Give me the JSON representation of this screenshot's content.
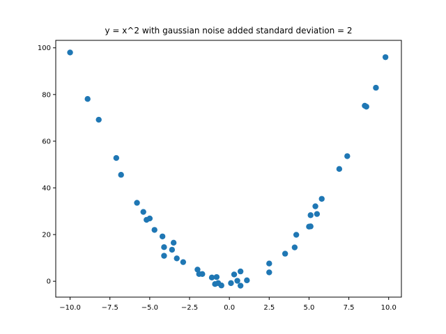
{
  "chart_data": {
    "type": "scatter",
    "title": "y = x^2 with gaussian noise added standard deviation = 2",
    "xlabel": "",
    "ylabel": "",
    "xlim": [
      -10.9,
      10.8
    ],
    "ylim": [
      -6.8,
      103.2
    ],
    "xticks": [
      -10.0,
      -7.5,
      -5.0,
      -2.5,
      0.0,
      2.5,
      5.0,
      7.5,
      10.0
    ],
    "xtick_labels": [
      "−10.0",
      "−7.5",
      "−5.0",
      "−2.5",
      "0.0",
      "2.5",
      "5.0",
      "7.5",
      "10.0"
    ],
    "yticks": [
      0,
      20,
      40,
      60,
      80,
      100
    ],
    "ytick_labels": [
      "0",
      "20",
      "40",
      "60",
      "80",
      "100"
    ],
    "grid": false,
    "marker_color": "#1f77b4",
    "points": [
      {
        "x": -10.0,
        "y": 98.0
      },
      {
        "x": -8.9,
        "y": 78.1
      },
      {
        "x": -8.2,
        "y": 69.2
      },
      {
        "x": -7.1,
        "y": 52.8
      },
      {
        "x": -6.8,
        "y": 45.6
      },
      {
        "x": -5.8,
        "y": 33.6
      },
      {
        "x": -5.4,
        "y": 29.7
      },
      {
        "x": -5.2,
        "y": 26.3
      },
      {
        "x": -5.0,
        "y": 26.9
      },
      {
        "x": -4.7,
        "y": 22.0
      },
      {
        "x": -4.2,
        "y": 19.2
      },
      {
        "x": -4.1,
        "y": 14.6
      },
      {
        "x": -4.1,
        "y": 10.9
      },
      {
        "x": -3.6,
        "y": 13.5
      },
      {
        "x": -3.5,
        "y": 16.5
      },
      {
        "x": -3.3,
        "y": 9.8
      },
      {
        "x": -2.9,
        "y": 8.2
      },
      {
        "x": -2.0,
        "y": 5.0
      },
      {
        "x": -1.9,
        "y": 3.1
      },
      {
        "x": -1.7,
        "y": 3.1
      },
      {
        "x": -1.1,
        "y": 1.6
      },
      {
        "x": -0.9,
        "y": -1.2
      },
      {
        "x": -0.8,
        "y": 1.8
      },
      {
        "x": -0.7,
        "y": -0.8
      },
      {
        "x": -0.5,
        "y": -1.8
      },
      {
        "x": 0.1,
        "y": -0.8
      },
      {
        "x": 0.3,
        "y": 2.9
      },
      {
        "x": 0.5,
        "y": 0.2
      },
      {
        "x": 0.7,
        "y": 4.2
      },
      {
        "x": 0.7,
        "y": -1.9
      },
      {
        "x": 1.1,
        "y": 0.4
      },
      {
        "x": 2.5,
        "y": 3.8
      },
      {
        "x": 2.5,
        "y": 7.6
      },
      {
        "x": 3.5,
        "y": 11.8
      },
      {
        "x": 4.1,
        "y": 14.5
      },
      {
        "x": 4.2,
        "y": 19.9
      },
      {
        "x": 5.0,
        "y": 23.4
      },
      {
        "x": 5.1,
        "y": 23.5
      },
      {
        "x": 5.1,
        "y": 28.3
      },
      {
        "x": 5.4,
        "y": 32.1
      },
      {
        "x": 5.5,
        "y": 28.8
      },
      {
        "x": 5.8,
        "y": 35.3
      },
      {
        "x": 6.9,
        "y": 48.1
      },
      {
        "x": 7.4,
        "y": 53.6
      },
      {
        "x": 8.5,
        "y": 75.2
      },
      {
        "x": 8.6,
        "y": 74.8
      },
      {
        "x": 9.2,
        "y": 82.9
      },
      {
        "x": 9.8,
        "y": 96.0
      }
    ]
  }
}
